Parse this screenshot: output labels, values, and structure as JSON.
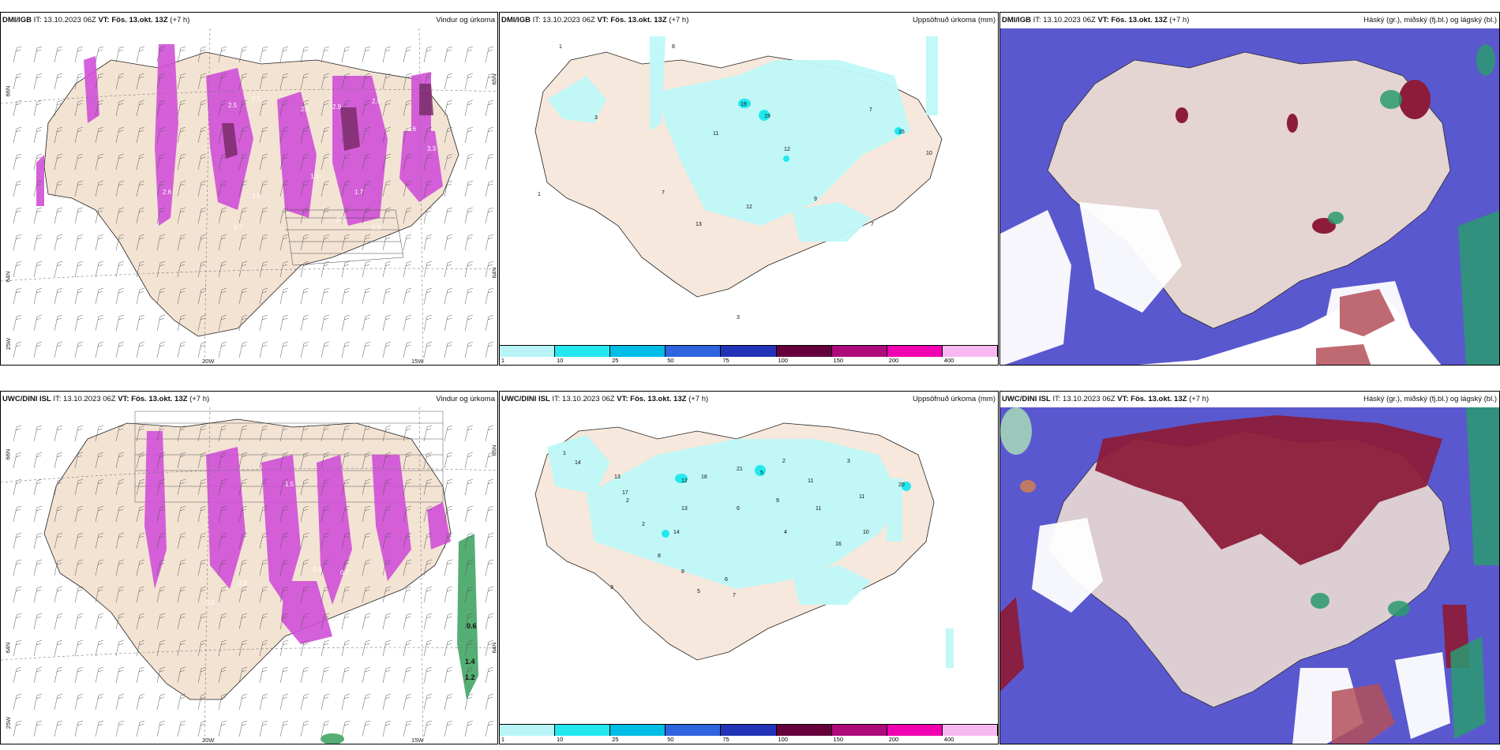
{
  "panels": {
    "p1": {
      "source": "DMI/IGB",
      "it_label": "IT: 13.10.2023 06Z",
      "vt_label": "VT: Fös. 13.okt. 13Z",
      "lead": "(+7 h)",
      "title_right": "Vindur og úrkoma",
      "ticks": [
        "66N",
        "64N",
        "25W",
        "20W",
        "15W",
        "65N",
        "64N"
      ],
      "values": [
        "2.5",
        "2.5",
        "2.5",
        "2.9",
        "2.5",
        "3.3",
        "2.6",
        "1.8",
        "1.1",
        "1.7",
        "2.1",
        "0.3",
        "0.7",
        "1.6"
      ]
    },
    "p2": {
      "source": "DMI/IGB",
      "it_label": "IT: 13.10.2023 06Z",
      "vt_label": "VT: Fös. 13.okt. 13Z",
      "lead": "(+7 h)",
      "title_right": "Uppsöfnuð úrkoma (mm)",
      "values": [
        "1",
        "8",
        "3",
        "19",
        "19",
        "7",
        "11",
        "12",
        "15",
        "10",
        "7",
        "9",
        "12",
        "13",
        "7",
        "1",
        "3"
      ]
    },
    "p3": {
      "source": "DMI/IGB",
      "it_label": "IT: 13.10.2023 06Z",
      "vt_label": "VT: Fös. 13.okt. 13Z",
      "lead": "(+7 h)",
      "title_right": "Háský (gr.), miðský (fj.bl.) og lágský (bl.)"
    },
    "p4": {
      "source": "UWC/DINI ISL",
      "it_label": "IT: 13.10.2023 06Z",
      "vt_label": "VT: Fös. 13.okt. 13Z",
      "lead": "(+7 h)",
      "title_right": "Vindur og úrkoma",
      "ticks": [
        "66N",
        "64N",
        "25W",
        "20W",
        "15W",
        "65N",
        "64N"
      ],
      "values": [
        "0.6",
        "1.4",
        "1.2",
        "0.4",
        "0.7",
        "1.5",
        "0.3",
        "0.5"
      ]
    },
    "p5": {
      "source": "UWC/DINI ISL",
      "it_label": "IT: 13.10.2023 06Z",
      "vt_label": "VT: Fös. 13.okt. 13Z",
      "lead": "(+7 h)",
      "title_right": "Uppsöfnuð úrkoma (mm)",
      "values": [
        "1",
        "14",
        "13",
        "17",
        "12",
        "18",
        "21",
        "5",
        "2",
        "11",
        "3",
        "11",
        "13",
        "20",
        "14",
        "9",
        "6",
        "4",
        "11",
        "10",
        "16",
        "8",
        "2",
        "7",
        "5",
        "6",
        "8",
        "3",
        "2"
      ]
    },
    "p6": {
      "source": "UWC/DINI ISL",
      "it_label": "IT: 13.10.2023 06Z",
      "vt_label": "VT: Fös. 13.okt. 13Z",
      "lead": "(+7 h)",
      "title_right": "Háský (gr.), miðský (fj.bl.) og lágský (bl.)"
    }
  },
  "colorbar": {
    "labels": [
      "1",
      "10",
      "25",
      "50",
      "75",
      "100",
      "150",
      "200",
      "400"
    ],
    "colors": [
      "#b8f4f6",
      "#22e8ee",
      "#00bde6",
      "#2f63e0",
      "#2233b8",
      "#66003d",
      "#ae0a7c",
      "#f000b0",
      "#f7b8f2"
    ]
  },
  "colors": {
    "land": "#f3e3d3",
    "precip_light": "#bff8f8",
    "precip_magenta": "#d050d8",
    "precip_dark": "#7a2a6a",
    "cloud_blue": "#5a58cf",
    "cloud_dark": "#8c1c3a",
    "cloud_green": "#2a9a70"
  }
}
